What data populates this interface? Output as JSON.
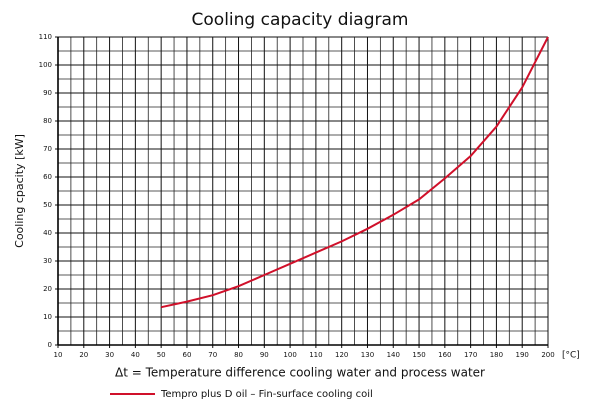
{
  "chart_data": {
    "type": "line",
    "title": "Cooling capacity diagram",
    "ylabel": "Cooling cpacity [kW]",
    "xlabel": "Δt = Temperature difference cooling water and process water",
    "x_unit": "[°C]",
    "x": [
      50,
      60,
      70,
      80,
      90,
      100,
      110,
      120,
      130,
      140,
      150,
      160,
      170,
      180,
      190,
      200
    ],
    "series": [
      {
        "name": "Tempro plus D oil – Fin-surface cooling coil",
        "color": "#d0102a",
        "values": [
          13.5,
          15.5,
          17.8,
          21,
          25,
          29,
          33,
          37,
          41.5,
          46.5,
          52,
          59.5,
          67.5,
          78,
          92,
          110
        ]
      }
    ],
    "xlim": [
      10,
      200
    ],
    "ylim": [
      0,
      110
    ],
    "xticks": [
      10,
      20,
      30,
      40,
      50,
      60,
      70,
      80,
      90,
      100,
      110,
      120,
      130,
      140,
      150,
      160,
      170,
      180,
      190,
      200
    ],
    "yticks": [
      0,
      10,
      20,
      30,
      40,
      50,
      60,
      70,
      80,
      90,
      100,
      110
    ],
    "xminorticks": [
      15,
      25,
      35,
      45,
      55,
      65,
      75,
      85,
      95,
      105,
      115,
      125,
      135,
      145,
      155,
      165,
      175,
      185,
      195
    ],
    "yminorticks": [
      5,
      15,
      25,
      35,
      45,
      55,
      65,
      75,
      85,
      95,
      105
    ],
    "grid": true
  }
}
